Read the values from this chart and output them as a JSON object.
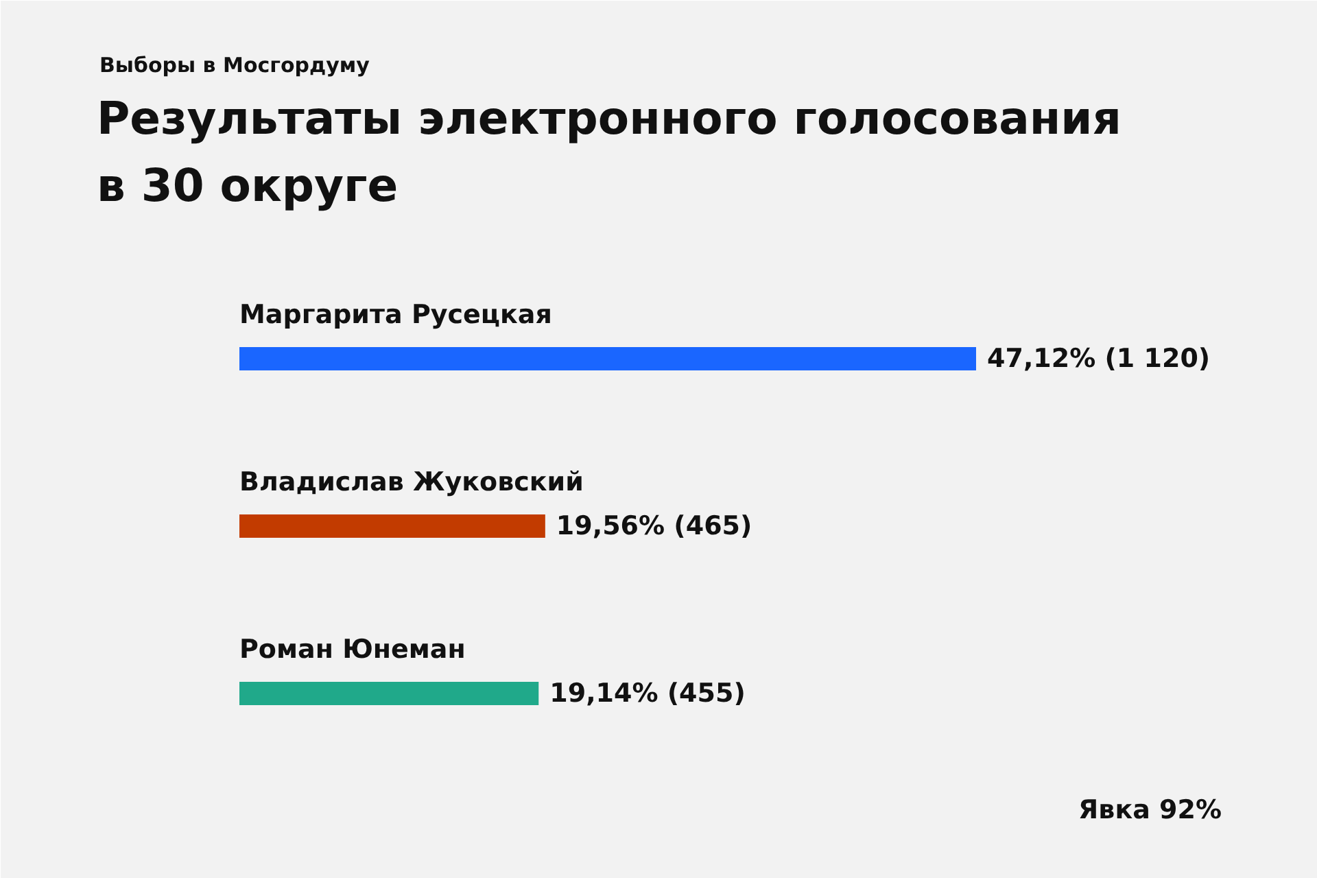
{
  "chart_data": {
    "type": "bar",
    "orientation": "horizontal",
    "subtitle": "Выборы в Мосгордуму",
    "title": "Результаты электронного голосования\nв 30 округе",
    "categories": [
      "Маргарита Русецкая",
      "Владислав Жуковский",
      "Роман Юнеман"
    ],
    "values": [
      47.12,
      19.56,
      19.14
    ],
    "colors": [
      "#1a66ff",
      "#c23b00",
      "#20a98a"
    ],
    "value_labels": [
      "47,12% (1 120)",
      "19,56% (465)",
      "19,14% (455)"
    ],
    "annotations": [
      "Явка 92%"
    ]
  }
}
